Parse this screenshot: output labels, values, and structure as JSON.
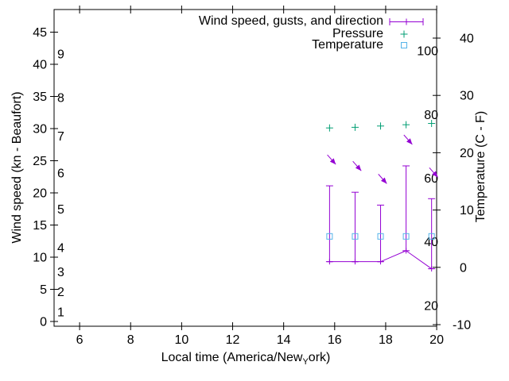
{
  "chart_data": {
    "type": "line",
    "background": "#ffffff",
    "xlabel": {
      "full": "Local time (America/New_York)",
      "prefix": "Local time (America/New",
      "sub": "Y",
      "suffix": "ork)"
    },
    "ylabel_left": "Wind speed (kn - Beaufort)",
    "ylabel_right": "Temperature (C - F)",
    "x_axis": {
      "range": [
        5,
        20
      ],
      "ticks": [
        6,
        8,
        10,
        12,
        14,
        16,
        18,
        20
      ]
    },
    "wind_axis": {
      "unit": "kn",
      "ticks": [
        0,
        5,
        10,
        15,
        20,
        25,
        30,
        35,
        40,
        45
      ]
    },
    "beaufort_labels": [
      {
        "label": "1",
        "at_kn": 1.5
      },
      {
        "label": "2",
        "at_kn": 4.6
      },
      {
        "label": "3",
        "at_kn": 7.7
      },
      {
        "label": "4",
        "at_kn": 11.5
      },
      {
        "label": "5",
        "at_kn": 17.5
      },
      {
        "label": "6",
        "at_kn": 23.1
      },
      {
        "label": "7",
        "at_kn": 28.8
      },
      {
        "label": "8",
        "at_kn": 34.8
      },
      {
        "label": "9",
        "at_kn": 41.6
      }
    ],
    "temp_axis_c": [
      -10,
      0,
      10,
      20,
      30,
      40
    ],
    "temp_axis_f": [
      20,
      40,
      60,
      80,
      100
    ],
    "legend": [
      {
        "label": "Wind speed, gusts, and direction",
        "color": "#9400d3",
        "marker": "errorbar"
      },
      {
        "label": "Pressure",
        "color": "#009e73",
        "marker": "plus"
      },
      {
        "label": "Temperature",
        "color": "#56b4e9",
        "marker": "open-square"
      }
    ],
    "series": {
      "time_h": [
        15.8,
        16.8,
        17.8,
        18.8,
        19.8
      ],
      "wind_speed_kn": [
        9.3,
        9.3,
        9.3,
        11,
        8.2
      ],
      "wind_gust_kn": [
        21.1,
        20.1,
        18.1,
        24.2,
        19.1
      ],
      "wind_arrow_points_toward": "SE",
      "pressure_inHg": [
        30.1,
        30.2,
        30.4,
        30.6,
        30.8
      ],
      "temperature_c": [
        5.4,
        5.4,
        5.4,
        5.4,
        5.4
      ]
    },
    "colors": {
      "wind": "#9400d3",
      "pressure": "#009e73",
      "temperature": "#56b4e9",
      "axis": "#000000"
    }
  }
}
